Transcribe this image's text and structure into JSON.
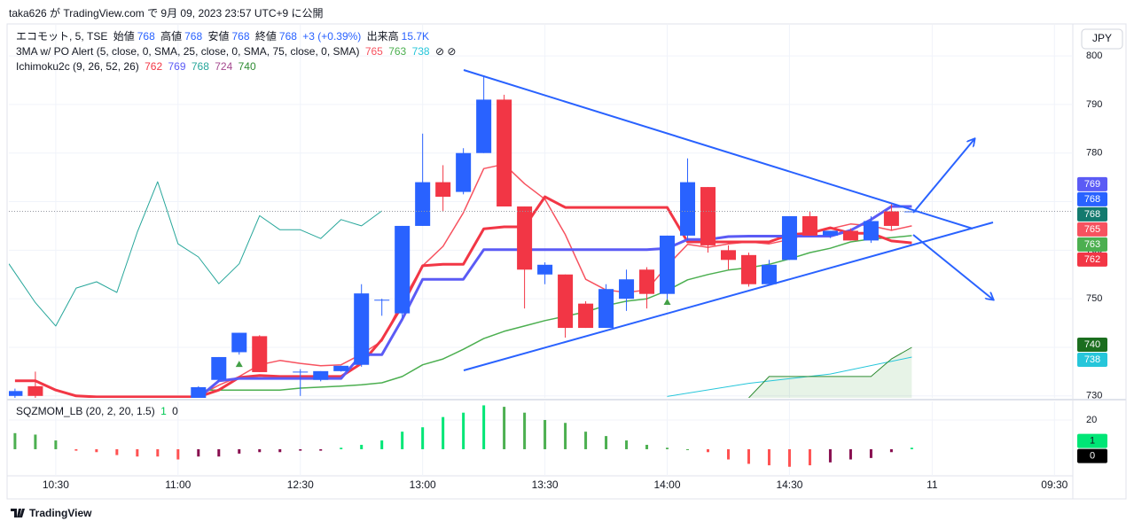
{
  "header": {
    "published": "taka626 が TradingView.com で 9月 09, 2023 23:57 UTC+9 に公開",
    "currency": "JPY",
    "brand": "TradingView"
  },
  "legend": {
    "symbol": "エコモット, 5, TSE",
    "open_label": "始値",
    "high_label": "高値",
    "low_label": "安値",
    "close_label": "終値",
    "change": "+3 (+0.39%)",
    "volume_label": "出来高",
    "volume": "15.7K",
    "ma_study": "3MA w/ PO Alert (5, close, 0, SMA, 25, close, 0, SMA, 75, close, 0, SMA)",
    "ma_icons": "⊘ ⊘",
    "ichimoku_study": "Ichimoku2c (9, 26, 52, 26)",
    "sqz_study": "SQZMOM_LB (20, 2, 20, 1.5)"
  },
  "chart_data": [
    {
      "type": "candlestick",
      "x": [
        0,
        1,
        9,
        10,
        11,
        12,
        14,
        15,
        16,
        17,
        18,
        19,
        20,
        21,
        22,
        23,
        24,
        25,
        26,
        27,
        28,
        29,
        30,
        31,
        32,
        33,
        34,
        35,
        36,
        37,
        38,
        39,
        40,
        41,
        42,
        43,
        44
      ],
      "open": [
        730,
        732,
        729,
        733.3,
        739,
        742.3,
        735,
        733.3,
        735.1,
        736.4,
        749.8,
        747,
        765,
        774,
        772,
        780,
        791,
        769,
        755,
        755,
        749,
        744,
        750,
        756,
        751,
        763,
        773,
        760,
        759,
        753,
        758,
        767,
        763,
        764,
        762,
        768,
        768
      ],
      "high": [
        731.5,
        735,
        732,
        738,
        743,
        742.5,
        735.5,
        735.1,
        736.2,
        753,
        750,
        765,
        784,
        777.5,
        781,
        796,
        792,
        769,
        757.5,
        755,
        749.5,
        753,
        756,
        756.5,
        763,
        778.9,
        773,
        761,
        759.5,
        758,
        767,
        768,
        764,
        764.5,
        767,
        769.5,
        768
      ],
      "low": [
        729,
        729,
        729,
        733,
        738.5,
        734.9,
        730,
        733,
        735,
        736,
        746.5,
        746,
        765,
        768,
        771.5,
        780,
        769,
        748,
        753,
        742,
        744,
        744,
        747.5,
        748,
        749.5,
        762,
        759.5,
        756,
        752.5,
        753,
        758,
        763,
        762.5,
        762,
        761.5,
        764,
        768
      ],
      "close": [
        731,
        730,
        731.8,
        738,
        743,
        734.9,
        735,
        735.1,
        736.2,
        751.1,
        749.8,
        765,
        774,
        771,
        780,
        791,
        769,
        756,
        757,
        744,
        744,
        752,
        754,
        751,
        763,
        774,
        761,
        758,
        753,
        757,
        767,
        763,
        764,
        762,
        766,
        765,
        768
      ],
      "up_color": "#2962ff",
      "down_color": "#f23645",
      "xlim": [
        -0.3,
        51.9
      ],
      "xticks": [
        {
          "value": 2,
          "label": "10:30"
        },
        {
          "value": 8,
          "label": "11:00"
        },
        {
          "value": 14,
          "label": "12:30"
        },
        {
          "value": 20,
          "label": "13:00"
        },
        {
          "value": 26,
          "label": "13:30"
        },
        {
          "value": 32,
          "label": "14:00"
        },
        {
          "value": 38,
          "label": "14:30"
        },
        {
          "value": 45,
          "label": "11"
        },
        {
          "value": 51,
          "label": "09:30"
        }
      ],
      "ylim": [
        729.6,
        806.4
      ],
      "yticks": [
        730,
        740,
        750,
        760,
        770,
        780,
        790,
        800
      ],
      "grid": true,
      "signals": {
        "x": [
          11,
          32
        ],
        "values": [
          736.5,
          749.3
        ],
        "color": "#43a047"
      },
      "lines": [
        {
          "color": "#f7525f",
          "width": 1.5,
          "last": 765,
          "x": [
            9,
            10,
            11,
            12,
            13,
            14,
            15,
            16,
            17,
            18,
            19,
            20,
            21,
            22,
            23,
            24,
            25,
            26,
            27,
            28,
            29,
            30,
            31,
            32,
            33,
            34,
            35,
            36,
            37,
            38,
            39,
            40,
            41,
            42,
            43,
            44
          ],
          "values": [
            730,
            732.2,
            734,
            736.4,
            737.3,
            736.7,
            736.2,
            736.4,
            738.6,
            741.3,
            749.5,
            756.8,
            760.8,
            767.7,
            776.8,
            777.7,
            773.7,
            770.5,
            763.2,
            754,
            751.8,
            751.3,
            751.8,
            756.8,
            761.2,
            760.6,
            761.3,
            761.7,
            761.3,
            762.2,
            763.5,
            764.4,
            765.4,
            765,
            764.1,
            765
          ]
        },
        {
          "color": "#4caf50",
          "width": 1.5,
          "last": 763,
          "x": [
            9,
            10,
            11,
            12,
            13,
            14,
            15,
            16,
            17,
            18,
            19,
            20,
            21,
            22,
            23,
            24,
            25,
            26,
            27,
            28,
            29,
            30,
            31,
            32,
            33,
            34,
            35,
            36,
            37,
            38,
            39,
            40,
            41,
            42,
            43,
            44
          ],
          "values": [
            731.2,
            731.2,
            731.2,
            731.2,
            731.2,
            731.6,
            731.8,
            732,
            732.3,
            732.7,
            734,
            736.4,
            737.6,
            739.6,
            741.8,
            743.3,
            744.4,
            745.5,
            746.4,
            747.3,
            748.6,
            749.5,
            750,
            751.7,
            753.9,
            755,
            755.9,
            756.4,
            757.1,
            758.2,
            759.5,
            760.4,
            761.7,
            762.3,
            762.6,
            763
          ]
        },
        {
          "color": "#26c6da",
          "width": 1,
          "last": 738,
          "x": [
            32,
            36,
            40,
            44
          ],
          "values": [
            729.9,
            732.6,
            734.5,
            738
          ]
        },
        {
          "color": "#f23645",
          "width": 3,
          "last": 762,
          "x": [
            0,
            1,
            2,
            3,
            4,
            5,
            6,
            7,
            8,
            9,
            10,
            11,
            12,
            13,
            14,
            15,
            16,
            17,
            18,
            19,
            20,
            21,
            22,
            23,
            24,
            25,
            26,
            27,
            28,
            29,
            30,
            31,
            32,
            33,
            34,
            35,
            36,
            37,
            38,
            39,
            40,
            41,
            42,
            43,
            44
          ],
          "values": [
            733.1,
            733.1,
            731.2,
            730,
            729.8,
            729.8,
            729.8,
            729.8,
            729.8,
            729.8,
            731.2,
            733.8,
            734.2,
            734,
            734,
            734,
            734,
            736.7,
            741.6,
            748.6,
            756.8,
            757.1,
            757.1,
            764.4,
            764.8,
            764.8,
            771,
            768.8,
            768.8,
            768.8,
            768.8,
            768.8,
            768.8,
            761.7,
            761.7,
            761.7,
            761.7,
            761.7,
            763.2,
            763.5,
            764.6,
            763.5,
            763.5,
            761.9,
            761.5
          ]
        },
        {
          "color": "#5b5bf5",
          "width": 3,
          "last": 769,
          "x": [
            9,
            10,
            11,
            12,
            13,
            14,
            15,
            16,
            17,
            18,
            19,
            20,
            21,
            22,
            23,
            24,
            25,
            26,
            27,
            28,
            29,
            30,
            31,
            32,
            33,
            34,
            35,
            36,
            37,
            38,
            39,
            40,
            41,
            42,
            43,
            44
          ],
          "values": [
            729.6,
            733.1,
            733.6,
            733.6,
            733.6,
            733.6,
            733.6,
            733.6,
            738.5,
            738.5,
            745.8,
            754,
            754,
            754,
            760.1,
            760.1,
            760.1,
            760.1,
            760.1,
            760.1,
            760.1,
            760.1,
            760.1,
            760.4,
            762.2,
            762.2,
            762.8,
            762.9,
            762.9,
            762.9,
            762.9,
            762.9,
            764.1,
            766.3,
            769,
            769
          ]
        },
        {
          "color": "#26a69a",
          "width": 1,
          "last": 768,
          "x": [
            -0.3,
            1,
            2,
            3,
            4,
            5,
            6,
            7,
            8,
            9,
            10,
            11,
            12,
            13,
            14,
            15,
            16,
            17,
            18
          ],
          "values": [
            757.2,
            749.2,
            744.4,
            752.2,
            753.5,
            751.3,
            763.7,
            774.1,
            761.3,
            758.6,
            753.1,
            757.2,
            767.1,
            764.2,
            764.2,
            762.4,
            766.3,
            765,
            768.1
          ]
        },
        {
          "color": "#a54a8f",
          "last": 724
        },
        {
          "color": "#2e8b32",
          "width": 1,
          "last": 740,
          "fill": "rgba(67,160,71,0.13)",
          "x": [
            36,
            37,
            38,
            40,
            42,
            43,
            44
          ],
          "values": [
            729.6,
            734,
            734,
            734,
            734,
            737.6,
            740
          ]
        }
      ]
    },
    {
      "type": "bar",
      "x": [
        0,
        1,
        2,
        3,
        4,
        5,
        6,
        7,
        8,
        9,
        10,
        11,
        12,
        13,
        14,
        15,
        16,
        17,
        18,
        19,
        20,
        21,
        22,
        23,
        24,
        25,
        26,
        27,
        28,
        29,
        30,
        31,
        32,
        33,
        34,
        35,
        36,
        37,
        38,
        39,
        40,
        41,
        42,
        43,
        44
      ],
      "values": [
        11,
        10,
        6,
        -1,
        -2,
        -4,
        -5,
        -5,
        -7,
        -5,
        -5,
        -3,
        -2,
        -2,
        -1,
        -1,
        1,
        3,
        6,
        12,
        15,
        22,
        25,
        30,
        29,
        25,
        20,
        18,
        12,
        9,
        6,
        3,
        1,
        0,
        -2,
        -7,
        -10,
        -11,
        -12,
        -11,
        -9,
        -7,
        -6,
        -2,
        1
      ],
      "colors": [
        "#4caf50",
        "#4caf50",
        "#4caf50",
        "#ff5252",
        "#ff5252",
        "#ff5252",
        "#ff5252",
        "#ff5252",
        "#ff5252",
        "#880e4f",
        "#880e4f",
        "#880e4f",
        "#880e4f",
        "#880e4f",
        "#880e4f",
        "#880e4f",
        "#00e676",
        "#00e676",
        "#00e676",
        "#00e676",
        "#00e676",
        "#00e676",
        "#00e676",
        "#00e676",
        "#4caf50",
        "#4caf50",
        "#4caf50",
        "#4caf50",
        "#4caf50",
        "#4caf50",
        "#4caf50",
        "#4caf50",
        "#4caf50",
        "#4caf50",
        "#ff5252",
        "#ff5252",
        "#ff5252",
        "#ff5252",
        "#ff5252",
        "#ff5252",
        "#880e4f",
        "#880e4f",
        "#880e4f",
        "#880e4f",
        "#00e676"
      ],
      "squeeze": 0,
      "xlim": [
        -0.3,
        51.9
      ],
      "ylim": [
        -18.2,
        32.7
      ],
      "yticks": [
        20
      ]
    }
  ]
}
